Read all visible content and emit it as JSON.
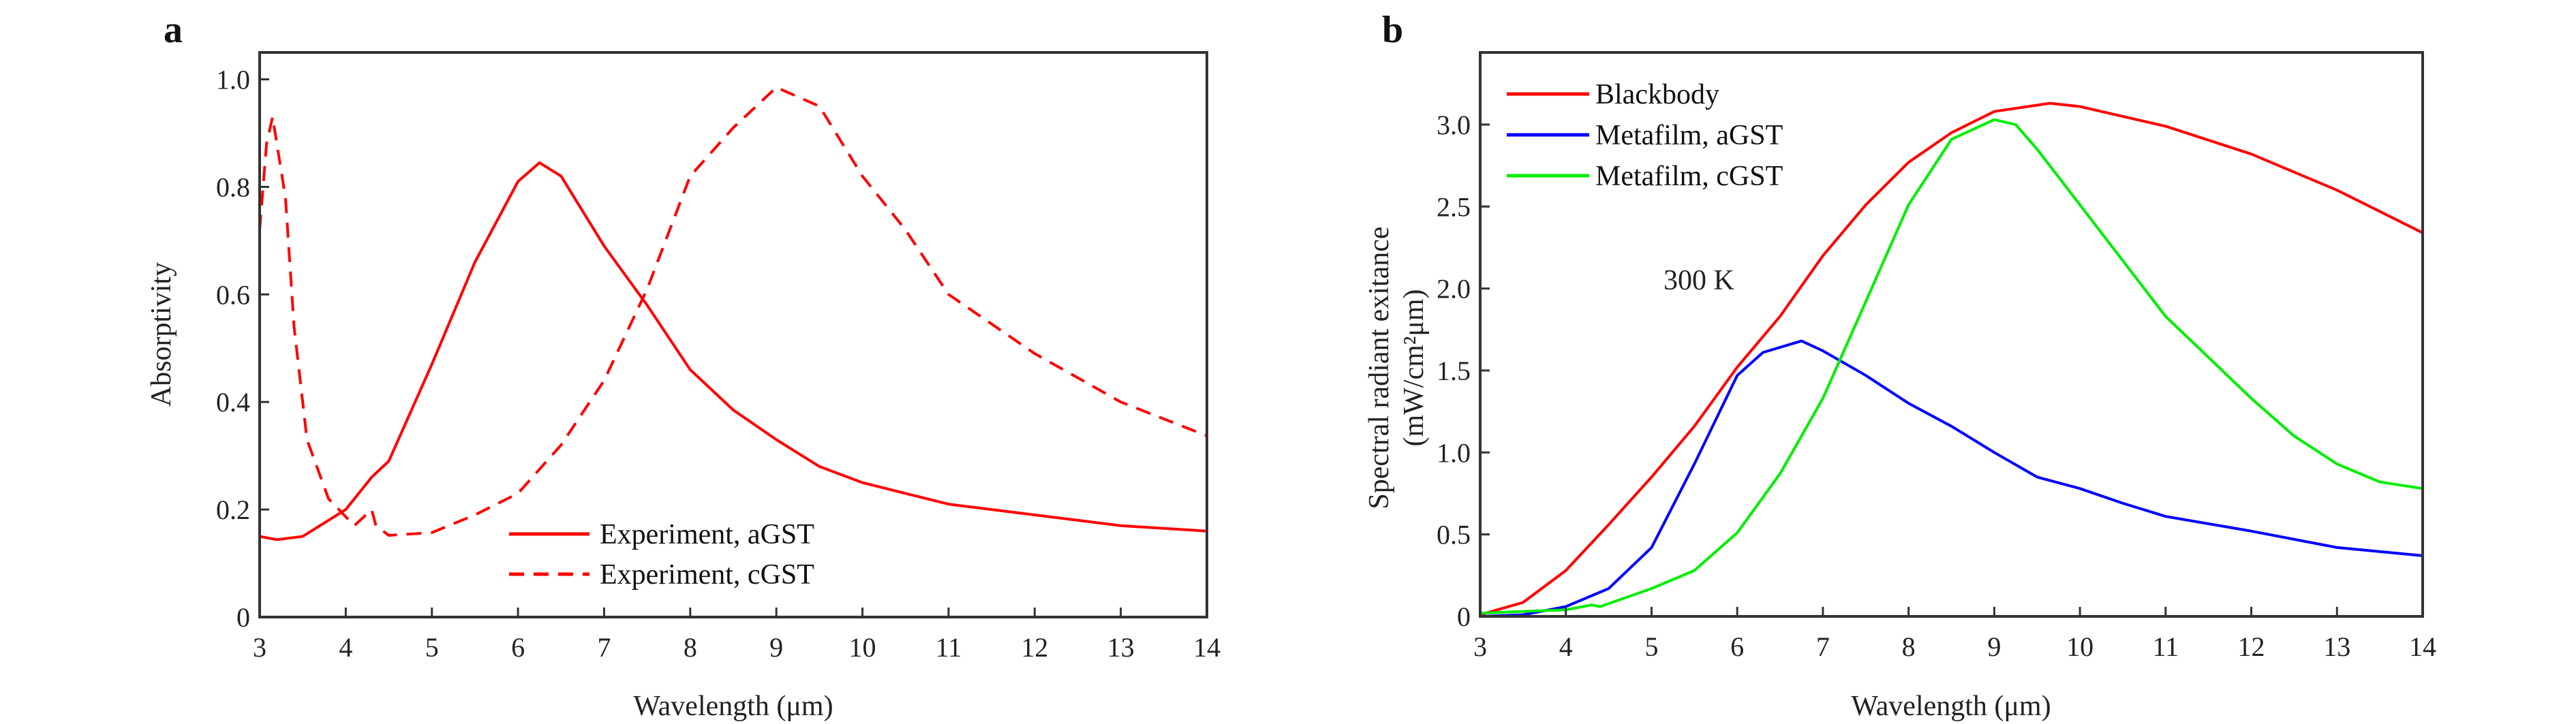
{
  "chart_data": [
    {
      "panel_label": "a",
      "type": "line",
      "xlabel": "Wavelength (μm)",
      "ylabel": "Absorptivity",
      "xlim": [
        3,
        14
      ],
      "ylim": [
        0,
        1.05
      ],
      "xticks": [
        3,
        4,
        5,
        6,
        7,
        8,
        9,
        10,
        11,
        12,
        13,
        14
      ],
      "yticks": [
        0,
        0.2,
        0.4,
        0.6,
        0.8,
        1.0
      ],
      "ytick_labels": [
        "0",
        "0.2",
        "0.4",
        "0.6",
        "0.8",
        "1.0"
      ],
      "grid": false,
      "legend_position": "bottom-center",
      "series": [
        {
          "name": "Experiment, aGST",
          "color": "#ff0000",
          "style": "solid",
          "x": [
            3,
            3.2,
            3.5,
            4,
            4.3,
            4.5,
            5,
            5.5,
            6,
            6.25,
            6.5,
            7,
            7.5,
            8,
            8.5,
            9,
            9.5,
            10,
            10.5,
            11,
            11.5,
            12,
            12.5,
            13,
            13.5,
            14
          ],
          "y": [
            0.15,
            0.144,
            0.15,
            0.2,
            0.26,
            0.29,
            0.47,
            0.66,
            0.81,
            0.845,
            0.82,
            0.69,
            0.58,
            0.46,
            0.385,
            0.33,
            0.28,
            0.25,
            0.23,
            0.21,
            0.2,
            0.19,
            0.18,
            0.17,
            0.165,
            0.16
          ]
        },
        {
          "name": "Experiment, cGST",
          "color": "#ff0000",
          "style": "dashed",
          "x": [
            3,
            3.08,
            3.15,
            3.3,
            3.4,
            3.55,
            3.8,
            4.1,
            4.3,
            4.35,
            4.5,
            5,
            5.5,
            6,
            6.5,
            7,
            7.5,
            8,
            8.5,
            9,
            9.5,
            10,
            10.5,
            11,
            12,
            13,
            14
          ],
          "y": [
            0.72,
            0.88,
            0.93,
            0.78,
            0.54,
            0.33,
            0.22,
            0.17,
            0.2,
            0.17,
            0.152,
            0.157,
            0.19,
            0.23,
            0.32,
            0.44,
            0.61,
            0.82,
            0.91,
            0.985,
            0.95,
            0.82,
            0.72,
            0.6,
            0.49,
            0.4,
            0.337
          ]
        }
      ]
    },
    {
      "panel_label": "b",
      "type": "line",
      "xlabel": "Wavelength (μm)",
      "ylabel": "Spectral radiant exitance",
      "ylabel_unit": "(mW/cm²μm)",
      "annotation": "300 K",
      "xlim": [
        3,
        14
      ],
      "ylim": [
        0,
        3.44
      ],
      "xticks": [
        3,
        4,
        5,
        6,
        7,
        8,
        9,
        10,
        11,
        12,
        13,
        14
      ],
      "yticks": [
        0,
        0.5,
        1.0,
        1.5,
        2.0,
        2.5,
        3.0
      ],
      "ytick_labels": [
        "0",
        "0.5",
        "1.0",
        "1.5",
        "2.0",
        "2.5",
        "3.0"
      ],
      "grid": false,
      "legend_position": "top-left",
      "series": [
        {
          "name": "Blackbody",
          "color": "#ff0000",
          "x": [
            3,
            3.5,
            4,
            4.5,
            5,
            5.5,
            6,
            6.5,
            7,
            7.5,
            8,
            8.5,
            9,
            9.65,
            10,
            11,
            12,
            13,
            14
          ],
          "y": [
            0.01,
            0.085,
            0.28,
            0.56,
            0.85,
            1.16,
            1.52,
            1.83,
            2.2,
            2.51,
            2.77,
            2.95,
            3.08,
            3.13,
            3.11,
            2.99,
            2.82,
            2.6,
            2.34
          ]
        },
        {
          "name": "Metafilm, aGST",
          "color": "#0000ff",
          "x": [
            3,
            3.5,
            4,
            4.5,
            5,
            5.5,
            6,
            6.3,
            6.75,
            7,
            7.5,
            8,
            8.5,
            9,
            9.5,
            10,
            10.5,
            11,
            12,
            13,
            14
          ],
          "y": [
            0,
            0.01,
            0.06,
            0.17,
            0.42,
            0.93,
            1.47,
            1.61,
            1.68,
            1.62,
            1.47,
            1.3,
            1.16,
            1.0,
            0.85,
            0.78,
            0.69,
            0.61,
            0.52,
            0.42,
            0.37
          ]
        },
        {
          "name": "Metafilm, cGST",
          "color": "#00ee00",
          "x": [
            3,
            3.5,
            4,
            4.3,
            4.4,
            5,
            5.5,
            6,
            6.5,
            7,
            7.5,
            8,
            8.5,
            9,
            9.25,
            9.5,
            10,
            10.5,
            11,
            11.5,
            12,
            12.5,
            13,
            13.5,
            14
          ],
          "y": [
            0.02,
            0.03,
            0.04,
            0.07,
            0.06,
            0.17,
            0.28,
            0.51,
            0.87,
            1.33,
            1.92,
            2.51,
            2.91,
            3.03,
            3.0,
            2.85,
            2.51,
            2.17,
            1.83,
            1.58,
            1.33,
            1.1,
            0.93,
            0.82,
            0.78
          ]
        }
      ]
    }
  ]
}
